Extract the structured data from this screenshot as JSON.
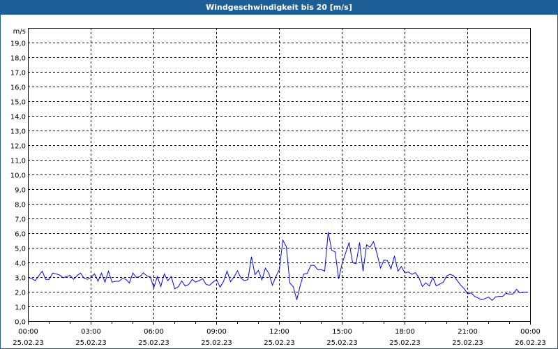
{
  "window": {
    "title": "Windgeschwindigkeit bis 20 [m/s]"
  },
  "colors": {
    "titlebar": "#1d5e96",
    "line": "#0000ff"
  },
  "chart_data": {
    "type": "line",
    "title": "Windgeschwindigkeit bis 20 [m/s]",
    "ylabel": "m/s",
    "ylim": [
      0,
      20
    ],
    "yticks": [
      "0,0",
      "1,0",
      "2,0",
      "3,0",
      "4,0",
      "5,0",
      "6,0",
      "7,0",
      "8,0",
      "9,0",
      "10,0",
      "11,0",
      "12,0",
      "13,0",
      "14,0",
      "15,0",
      "16,0",
      "17,0",
      "18,0",
      "19,0"
    ],
    "xlim_hours": [
      0,
      24
    ],
    "xticks": [
      {
        "time": "00:00",
        "date": "25.02.23"
      },
      {
        "time": "03:00",
        "date": "25.02.23"
      },
      {
        "time": "06:00",
        "date": "25.02.23"
      },
      {
        "time": "09:00",
        "date": "25.02.23"
      },
      {
        "time": "12:00",
        "date": "25.02.23"
      },
      {
        "time": "15:00",
        "date": "25.02.23"
      },
      {
        "time": "18:00",
        "date": "25.02.23"
      },
      {
        "time": "21:00",
        "date": "25.02.23"
      },
      {
        "time": "00:00",
        "date": "26.02.23"
      }
    ],
    "grid": true,
    "interval_minutes": 10,
    "series": [
      {
        "name": "Windgeschwindigkeit",
        "values": [
          3.0,
          2.93,
          2.78,
          3.11,
          3.43,
          2.87,
          2.87,
          3.3,
          3.25,
          3.16,
          2.98,
          3.06,
          3.14,
          2.87,
          3.13,
          3.3,
          2.95,
          2.87,
          3.0,
          3.25,
          2.74,
          3.3,
          2.68,
          3.43,
          2.68,
          2.74,
          2.74,
          2.93,
          2.87,
          2.63,
          3.3,
          3.0,
          3.06,
          3.32,
          3.11,
          3.03,
          2.3,
          3.06,
          2.39,
          3.24,
          2.78,
          3.06,
          2.23,
          2.36,
          2.76,
          2.42,
          2.52,
          2.87,
          2.68,
          2.79,
          2.92,
          2.52,
          2.47,
          2.68,
          2.85,
          2.34,
          2.74,
          3.44,
          2.71,
          3.03,
          3.46,
          2.95,
          2.78,
          2.85,
          4.42,
          3.19,
          3.48,
          2.84,
          3.64,
          3.27,
          2.47,
          3.06,
          3.54,
          5.55,
          5.1,
          2.63,
          2.36,
          1.47,
          2.47,
          3.24,
          3.27,
          3.83,
          3.83,
          3.54,
          3.54,
          3.43,
          6.1,
          4.86,
          4.75,
          2.9,
          3.96,
          4.66,
          5.39,
          4.02,
          3.94,
          5.39,
          3.43,
          5.23,
          5.06,
          5.45,
          4.63,
          3.64,
          4.19,
          4.15,
          3.59,
          4.47,
          3.43,
          3.75,
          3.3,
          3.38,
          3.22,
          3.33,
          3.0,
          2.39,
          2.63,
          2.42,
          3.0,
          2.42,
          2.55,
          2.68,
          3.11,
          3.22,
          3.11,
          2.79,
          2.47,
          2.23,
          1.88,
          1.95,
          1.71,
          1.6,
          1.47,
          1.56,
          1.66,
          1.44,
          1.67,
          1.71,
          1.71,
          1.91,
          1.87,
          1.87,
          2.19,
          1.95,
          1.99,
          1.99
        ]
      }
    ]
  }
}
